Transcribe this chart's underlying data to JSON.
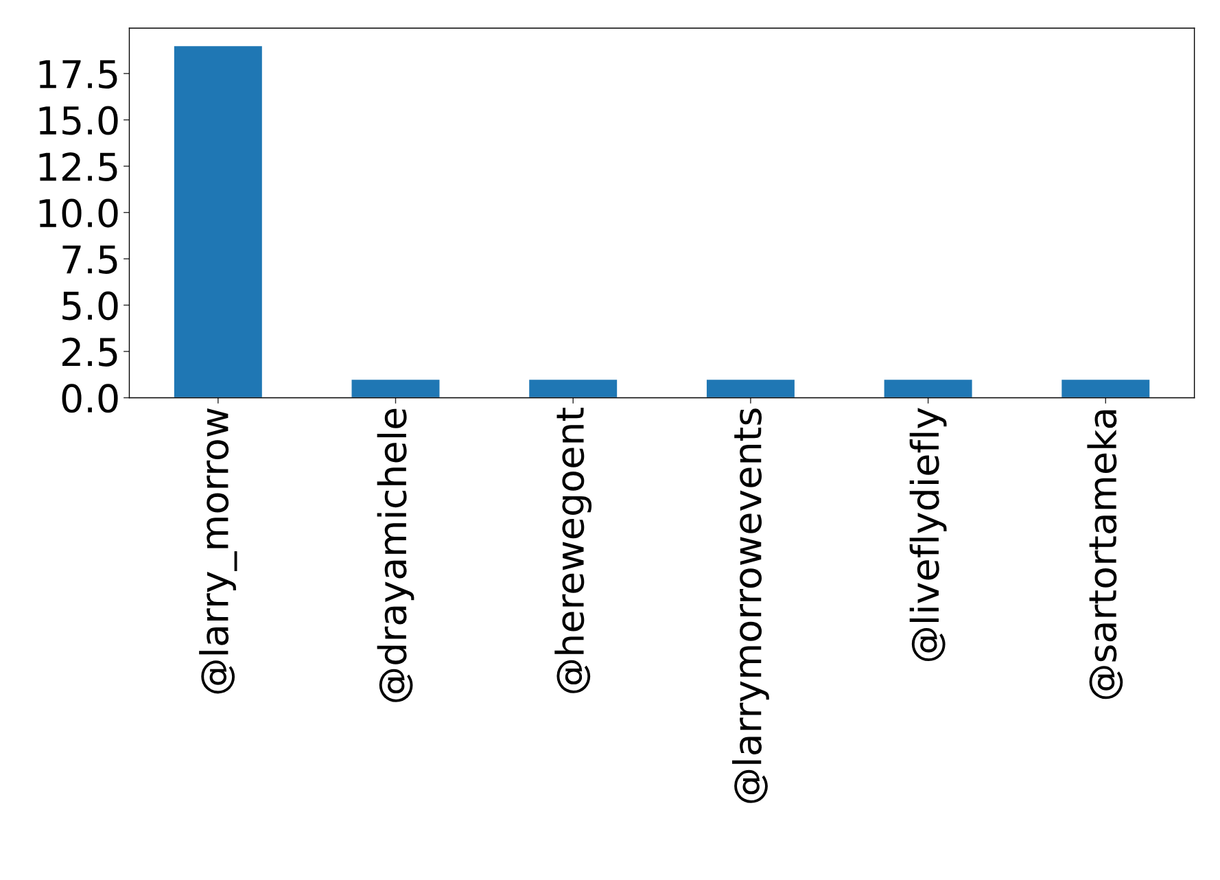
{
  "chart_data": {
    "type": "bar",
    "categories": [
      "@larry_morrow",
      "@drayamichele",
      "@herewegoent",
      "@larrymorrowevents",
      "@liveflydiefly",
      "@sartortameka"
    ],
    "values": [
      19,
      1,
      1,
      1,
      1,
      1
    ],
    "color": "#1f77b4",
    "ylim": [
      0,
      19.95
    ],
    "yticks": [
      {
        "value": 0,
        "label": "0.0"
      },
      2.5,
      {
        "value": 5,
        "label": "5.0"
      },
      7.5,
      {
        "value": 10,
        "label": "10.0"
      },
      12.5,
      {
        "value": 15,
        "label": "15.0"
      },
      17.5
    ],
    "grid": false
  }
}
